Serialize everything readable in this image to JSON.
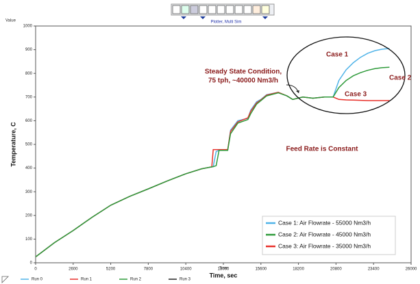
{
  "chart_data": {
    "type": "line",
    "title": "Plotter, Multi Sim",
    "y_axis_top_label": "Value",
    "y_label": "Temperature, C",
    "x_axis_small_label": "Time",
    "x_label": "Time, sec",
    "xlim": [
      0,
      26000
    ],
    "xticks": [
      0,
      2600,
      5200,
      7800,
      10400,
      13000,
      15600,
      18200,
      20800,
      23400,
      26000
    ],
    "ylim": [
      0,
      1000
    ],
    "yticks": [
      0,
      100,
      200,
      300,
      400,
      500,
      600,
      700,
      800,
      900,
      1000
    ],
    "grid": false,
    "x": [
      0,
      1300,
      2600,
      3900,
      5200,
      6500,
      7800,
      9100,
      10400,
      11500,
      12200,
      12300,
      12500,
      12700,
      13300,
      13500,
      14000,
      14700,
      14900,
      15300,
      15600,
      16000,
      16800,
      17400,
      17800,
      18500,
      19200,
      20000,
      20600,
      21000,
      21500,
      22000,
      22500,
      23000,
      23500,
      24000,
      24500
    ],
    "series": [
      {
        "name": "Run 0",
        "color": "#4fb3e8",
        "values": [
          25,
          85,
          136,
          192,
          243,
          280,
          312,
          345,
          376,
          397,
          405,
          406,
          470,
          475,
          475,
          560,
          600,
          610,
          645,
          680,
          690,
          710,
          720,
          705,
          690,
          700,
          695,
          700,
          700,
          770,
          815,
          845,
          868,
          885,
          896,
          902,
          905
        ]
      },
      {
        "name": "Run 1",
        "color": "#e8302a",
        "values": [
          25,
          85,
          136,
          192,
          243,
          280,
          312,
          345,
          376,
          397,
          405,
          478,
          478,
          478,
          478,
          555,
          595,
          612,
          640,
          675,
          688,
          708,
          720,
          705,
          690,
          700,
          695,
          700,
          700,
          690,
          688,
          687,
          686,
          685,
          685,
          685,
          685
        ]
      },
      {
        "name": "Run 2",
        "color": "#2e9a3a",
        "values": [
          25,
          85,
          136,
          192,
          243,
          280,
          312,
          345,
          376,
          397,
          405,
          406,
          410,
          475,
          475,
          545,
          590,
          605,
          630,
          670,
          685,
          705,
          718,
          705,
          690,
          700,
          695,
          700,
          700,
          740,
          770,
          790,
          803,
          813,
          820,
          824,
          826
        ]
      },
      {
        "name": "Run 3",
        "color": "#222222",
        "values": [
          null,
          null,
          null,
          null,
          null,
          null,
          null,
          null,
          null,
          null,
          null,
          null,
          null,
          null,
          null,
          null,
          null,
          null,
          null,
          null,
          null,
          null,
          null,
          null,
          null,
          null,
          null,
          null,
          null,
          null,
          null,
          null,
          null,
          null,
          null,
          null,
          null
        ]
      }
    ],
    "case_legend": [
      {
        "label": "Case 1: Air Flowrate - 55000 Nm3/h",
        "color": "#4fb3e8"
      },
      {
        "label": "Case 2: Air Flowrate - 45000 Nm3/h",
        "color": "#2e9a3a"
      },
      {
        "label": "Case 3: Air Flowrate - 35000 Nm3/h",
        "color": "#e8302a"
      }
    ],
    "annotations": [
      "Steady State Condition,",
      "75 tph, ~40000 Nm3/h",
      "Feed Rate is Constant",
      "Case 1",
      "Case 2",
      "Case 3"
    ]
  }
}
